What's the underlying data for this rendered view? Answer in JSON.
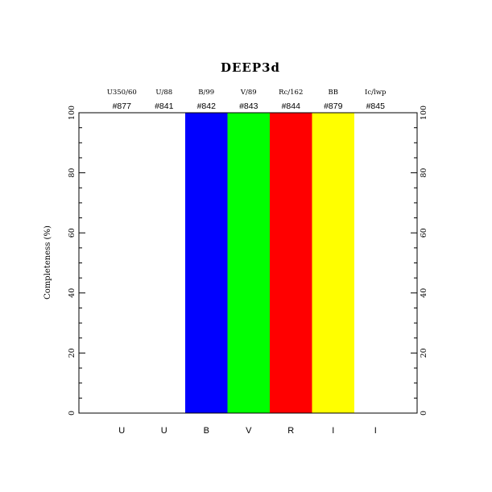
{
  "chart_data": {
    "type": "bar",
    "title": "DEEP3d",
    "ylabel": "Completeness (%)",
    "xlabel": "",
    "ylim": [
      0,
      100
    ],
    "yticks": [
      0,
      20,
      40,
      60,
      80,
      100
    ],
    "categories": [
      "U",
      "U",
      "B",
      "V",
      "R",
      "I",
      "I"
    ],
    "filters": [
      "U350/60",
      "U/88",
      "B/99",
      "V/89",
      "Rc/162",
      "BB",
      "Ic/lwp"
    ],
    "ids": [
      "#877",
      "#841",
      "#842",
      "#843",
      "#844",
      "#879",
      "#845"
    ],
    "values": [
      0,
      0,
      100,
      100,
      100,
      100,
      0
    ],
    "colors": [
      "#ffffff",
      "#ffffff",
      "#0000ff",
      "#00ff00",
      "#ff0000",
      "#ffff00",
      "#ffffff"
    ],
    "grid": false
  }
}
